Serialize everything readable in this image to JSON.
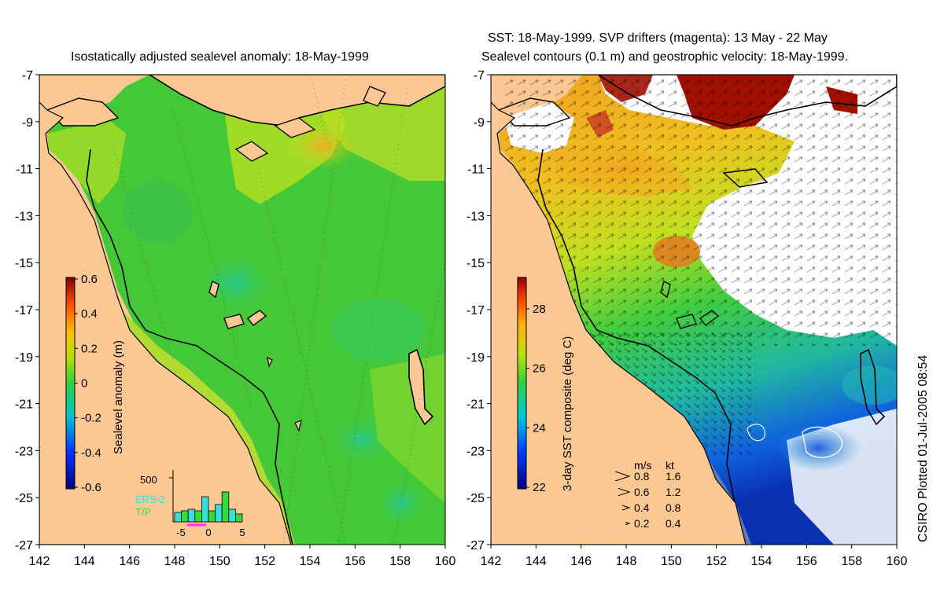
{
  "left_panel": {
    "title": "Isostatically adjusted sealevel anomaly: 18-May-1999",
    "x_ticks": [
      "142",
      "144",
      "146",
      "148",
      "150",
      "152",
      "154",
      "156",
      "158",
      "160"
    ],
    "y_ticks": [
      "-7",
      "-9",
      "-11",
      "-13",
      "-15",
      "-17",
      "-19",
      "-21",
      "-23",
      "-25",
      "-27"
    ],
    "colorbar": {
      "label": "Sealevel anomaly (m)",
      "ticks": [
        "0.6",
        "0.4",
        "0.2",
        "0",
        "-0.2",
        "-0.4",
        "-0.6"
      ]
    },
    "histogram": {
      "y_label": "500",
      "x_ticks": [
        "-5",
        "0",
        "5"
      ],
      "legend": [
        "ERS-2",
        "T/P"
      ],
      "colors": {
        "ers2": "#33e0e0",
        "tp": "#33dd33",
        "marker": "#ff33ff"
      }
    }
  },
  "right_panel": {
    "title_line1": "SST: 18-May-1999. SVP drifters (magenta): 13 May - 22 May",
    "title_line2": "Sealevel contours (0.1 m) and geostrophic velocity: 18-May-1999.",
    "x_ticks": [
      "142",
      "144",
      "146",
      "148",
      "150",
      "152",
      "154",
      "156",
      "158",
      "160"
    ],
    "y_ticks": [
      "-7",
      "-9",
      "-11",
      "-13",
      "-15",
      "-17",
      "-19",
      "-21",
      "-23",
      "-25",
      "-27"
    ],
    "colorbar": {
      "label": "3-day SST composite (deg C)",
      "ticks": [
        "28",
        "26",
        "24",
        "22"
      ]
    },
    "velocity_legend": {
      "header_ms": "m/s",
      "header_kt": "kt",
      "rows": [
        {
          "ms": "0.8",
          "kt": "1.6"
        },
        {
          "ms": "0.6",
          "kt": "1.2"
        },
        {
          "ms": "0.4",
          "kt": "0.8"
        },
        {
          "ms": "0.2",
          "kt": "0.4"
        }
      ]
    }
  },
  "credit": "CSIRO Plotted 01-Jul-2005 08:54",
  "colors": {
    "land": "#fbc894",
    "sea_mid": "#4ccc38",
    "warm": "#f0a020",
    "hot": "#b01800",
    "cold": "#1040c0"
  }
}
